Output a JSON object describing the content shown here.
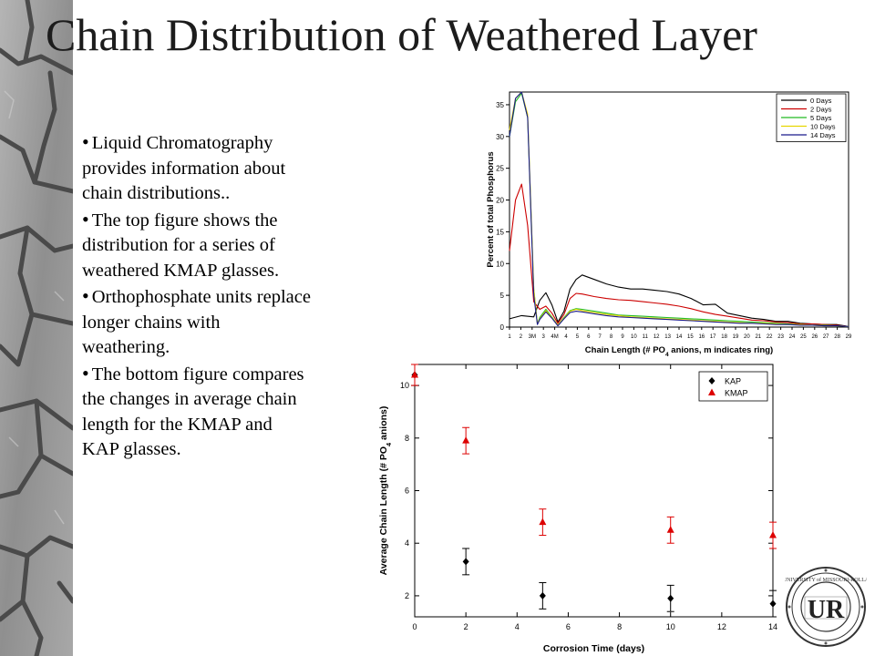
{
  "slide": {
    "title": "Chain Distribution of Weathered Layer",
    "bullets": [
      "Liquid Chromatography provides information about chain distributions..",
      "The top figure shows the distribution for a series of weathered KMAP glasses.",
      "Orthophosphate units replace longer chains with weathering.",
      "The bottom figure compares the changes in average chain length for the KMAP and KAP glasses."
    ],
    "seal_text": [
      "UNIVERSITY of MISSOURI-ROLLA",
      "UR"
    ]
  },
  "colors": {
    "0 Days": "#000000",
    "2 Days": "#cc0000",
    "5 Days": "#22bb22",
    "10 Days": "#e6d600",
    "14 Days": "#1a1a8c",
    "KAP": "#000000",
    "KMAP": "#dd0000"
  },
  "chart_data": [
    {
      "type": "line",
      "xlabel": "Chain Length (# PO4 anions, m indicates ring)",
      "ylabel": "Percent of total Phosphorus",
      "x_ticks": [
        "1",
        "2",
        "3M",
        "3",
        "4M",
        "4",
        "5",
        "6",
        "7",
        "8",
        "9",
        "10",
        "11",
        "12",
        "13",
        "14",
        "15",
        "16",
        "17",
        "18",
        "19",
        "20",
        "21",
        "22",
        "23",
        "24",
        "25",
        "26",
        "27",
        "28",
        "29"
      ],
      "y_ticks": [
        "0",
        "5",
        "10",
        "15",
        "20",
        "25",
        "30",
        "35"
      ],
      "ylim": [
        0,
        37
      ],
      "legend_position": "top-right",
      "grid": false,
      "series": [
        {
          "name": "0 Days",
          "points": [
            [
              1,
              1.3
            ],
            [
              2,
              1.8
            ],
            [
              3,
              1.6
            ],
            [
              3.5,
              4.2
            ],
            [
              4,
              5.4
            ],
            [
              4.5,
              3.5
            ],
            [
              5,
              0.8
            ],
            [
              5.5,
              2.5
            ],
            [
              6,
              6
            ],
            [
              6.5,
              7.5
            ],
            [
              7,
              8.2
            ],
            [
              8,
              7.5
            ],
            [
              9,
              6.8
            ],
            [
              10,
              6.3
            ],
            [
              11,
              6.0
            ],
            [
              12,
              6.0
            ],
            [
              13,
              5.8
            ],
            [
              14,
              5.6
            ],
            [
              15,
              5.2
            ],
            [
              16,
              4.5
            ],
            [
              17,
              3.5
            ],
            [
              18,
              3.6
            ],
            [
              19,
              2.2
            ],
            [
              20,
              1.8
            ],
            [
              21,
              1.4
            ],
            [
              22,
              1.2
            ],
            [
              23,
              0.9
            ],
            [
              24,
              0.9
            ],
            [
              25,
              0.6
            ],
            [
              26,
              0.5
            ],
            [
              27,
              0.4
            ],
            [
              28,
              0.4
            ],
            [
              29,
              0.1
            ]
          ]
        },
        {
          "name": "2 Days",
          "points": [
            [
              1,
              12
            ],
            [
              1.5,
              20
            ],
            [
              2,
              22.5
            ],
            [
              2.5,
              16
            ],
            [
              3,
              4
            ],
            [
              3.5,
              2.8
            ],
            [
              4,
              3.3
            ],
            [
              4.5,
              2.2
            ],
            [
              5,
              0.6
            ],
            [
              5.5,
              2
            ],
            [
              6,
              4.5
            ],
            [
              6.5,
              5.3
            ],
            [
              7,
              5.2
            ],
            [
              8,
              4.8
            ],
            [
              9,
              4.5
            ],
            [
              10,
              4.3
            ],
            [
              11,
              4.2
            ],
            [
              12,
              4.0
            ],
            [
              13,
              3.8
            ],
            [
              14,
              3.6
            ],
            [
              15,
              3.3
            ],
            [
              16,
              2.9
            ],
            [
              17,
              2.4
            ],
            [
              18,
              2.0
            ],
            [
              19,
              1.7
            ],
            [
              20,
              1.4
            ],
            [
              21,
              1.1
            ],
            [
              22,
              1.0
            ],
            [
              23,
              0.8
            ],
            [
              24,
              0.7
            ],
            [
              25,
              0.5
            ],
            [
              26,
              0.5
            ],
            [
              27,
              0.4
            ],
            [
              28,
              0.3
            ],
            [
              29,
              0.1
            ]
          ]
        },
        {
          "name": "5 Days",
          "points": [
            [
              1,
              30
            ],
            [
              1.5,
              35.5
            ],
            [
              2,
              36.8
            ],
            [
              2.5,
              33
            ],
            [
              3,
              6
            ],
            [
              3.3,
              0.5
            ],
            [
              3.5,
              1.5
            ],
            [
              4,
              2.8
            ],
            [
              4.5,
              1.6
            ],
            [
              5,
              0.3
            ],
            [
              5.5,
              1.5
            ],
            [
              6,
              2.6
            ],
            [
              6.5,
              2.9
            ],
            [
              7,
              2.8
            ],
            [
              8,
              2.5
            ],
            [
              9,
              2.2
            ],
            [
              10,
              1.9
            ],
            [
              11,
              1.8
            ],
            [
              12,
              1.7
            ],
            [
              13,
              1.6
            ],
            [
              14,
              1.5
            ],
            [
              15,
              1.4
            ],
            [
              16,
              1.3
            ],
            [
              17,
              1.2
            ],
            [
              18,
              1.1
            ],
            [
              19,
              1.0
            ],
            [
              20,
              0.9
            ],
            [
              21,
              0.8
            ],
            [
              22,
              0.7
            ],
            [
              23,
              0.6
            ],
            [
              24,
              0.5
            ],
            [
              25,
              0.4
            ],
            [
              26,
              0.3
            ],
            [
              27,
              0.3
            ],
            [
              28,
              0.2
            ],
            [
              29,
              0.1
            ]
          ]
        },
        {
          "name": "10 Days",
          "points": [
            [
              1,
              31
            ],
            [
              1.5,
              36
            ],
            [
              2,
              37
            ],
            [
              2.5,
              33.5
            ],
            [
              3,
              6
            ],
            [
              3.3,
              0.5
            ],
            [
              3.5,
              1.3
            ],
            [
              4,
              2.6
            ],
            [
              4.5,
              1.5
            ],
            [
              5,
              0.3
            ],
            [
              5.5,
              1.4
            ],
            [
              6,
              2.5
            ],
            [
              6.5,
              2.8
            ],
            [
              7,
              2.6
            ],
            [
              8,
              2.3
            ],
            [
              9,
              2.0
            ],
            [
              10,
              1.8
            ],
            [
              11,
              1.6
            ],
            [
              12,
              1.5
            ],
            [
              13,
              1.4
            ],
            [
              14,
              1.3
            ],
            [
              15,
              1.2
            ],
            [
              16,
              1.1
            ],
            [
              17,
              1.0
            ],
            [
              18,
              0.9
            ],
            [
              19,
              0.8
            ],
            [
              20,
              0.7
            ],
            [
              21,
              0.6
            ],
            [
              22,
              0.6
            ],
            [
              23,
              0.5
            ],
            [
              24,
              0.4
            ],
            [
              25,
              0.4
            ],
            [
              26,
              0.3
            ],
            [
              27,
              0.2
            ],
            [
              28,
              0.2
            ],
            [
              29,
              0.1
            ]
          ]
        },
        {
          "name": "14 Days",
          "points": [
            [
              1,
              30
            ],
            [
              1.5,
              36
            ],
            [
              2,
              37
            ],
            [
              2.5,
              33
            ],
            [
              3,
              5
            ],
            [
              3.3,
              0.4
            ],
            [
              3.5,
              1.2
            ],
            [
              4,
              2.4
            ],
            [
              4.5,
              1.4
            ],
            [
              5,
              0.2
            ],
            [
              5.5,
              1.3
            ],
            [
              6,
              2.3
            ],
            [
              6.5,
              2.5
            ],
            [
              7,
              2.4
            ],
            [
              8,
              2.1
            ],
            [
              9,
              1.8
            ],
            [
              10,
              1.6
            ],
            [
              11,
              1.5
            ],
            [
              12,
              1.4
            ],
            [
              13,
              1.3
            ],
            [
              14,
              1.2
            ],
            [
              15,
              1.1
            ],
            [
              16,
              1.0
            ],
            [
              17,
              0.9
            ],
            [
              18,
              0.8
            ],
            [
              19,
              0.7
            ],
            [
              20,
              0.6
            ],
            [
              21,
              0.6
            ],
            [
              22,
              0.5
            ],
            [
              23,
              0.4
            ],
            [
              24,
              0.4
            ],
            [
              25,
              0.3
            ],
            [
              26,
              0.3
            ],
            [
              27,
              0.2
            ],
            [
              28,
              0.2
            ],
            [
              29,
              0.1
            ]
          ]
        }
      ]
    },
    {
      "type": "scatter",
      "xlabel": "Corrosion Time (days)",
      "ylabel": "Average Chain Length (# PO4 anions)",
      "xlim": [
        0,
        14
      ],
      "ylim": [
        1.2,
        10.8
      ],
      "x_ticks": [
        0,
        2,
        4,
        6,
        8,
        10,
        12,
        14
      ],
      "y_ticks": [
        2,
        4,
        6,
        8,
        10
      ],
      "legend_position": "top-right",
      "grid": false,
      "series": [
        {
          "name": "KAP",
          "marker": "diamond",
          "x": [
            0,
            2,
            5,
            10,
            14
          ],
          "y": [
            10.4,
            3.3,
            2.0,
            1.9,
            1.7
          ],
          "err": [
            0.4,
            0.5,
            0.5,
            0.5,
            0.5
          ]
        },
        {
          "name": "KMAP",
          "marker": "triangle",
          "x": [
            0,
            2,
            5,
            10,
            14
          ],
          "y": [
            10.4,
            7.9,
            4.8,
            4.5,
            4.3
          ],
          "err": [
            0.4,
            0.5,
            0.5,
            0.5,
            0.5
          ]
        }
      ]
    }
  ]
}
